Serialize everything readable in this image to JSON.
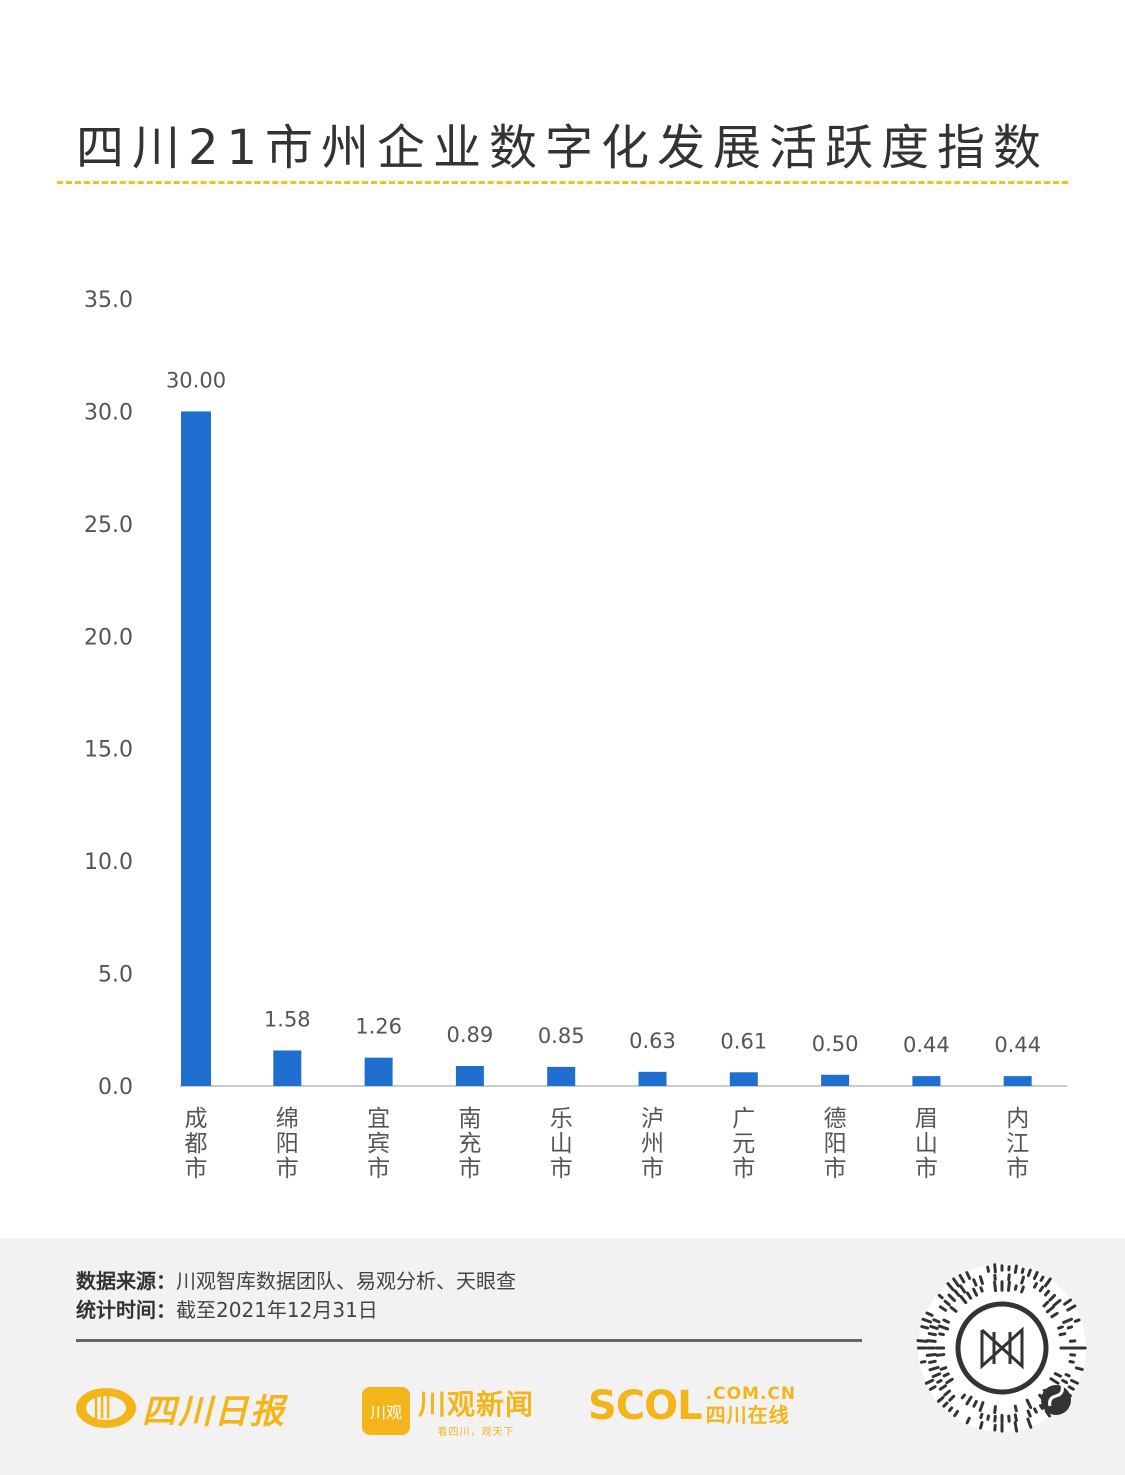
{
  "title": "四川21市州企业数字化发展活跃度指数",
  "chart_data": {
    "type": "bar",
    "categories": [
      "成都市",
      "绵阳市",
      "宜宾市",
      "南充市",
      "乐山市",
      "泸州市",
      "广元市",
      "德阳市",
      "眉山市",
      "内江市"
    ],
    "values": [
      30.0,
      1.58,
      1.26,
      0.89,
      0.85,
      0.63,
      0.61,
      0.5,
      0.44,
      0.44
    ],
    "value_labels": [
      "30.00",
      "1.58",
      "1.26",
      "0.89",
      "0.85",
      "0.63",
      "0.61",
      "0.50",
      "0.44",
      "0.44"
    ],
    "y_ticks": [
      "0.0",
      "5.0",
      "10.0",
      "15.0",
      "20.0",
      "25.0",
      "30.0",
      "35.0"
    ],
    "ylim": [
      0,
      35
    ],
    "grid": false,
    "bar_color": "#1f6fd0"
  },
  "footer": {
    "source_label": "数据来源：",
    "source_text": "川观智库数据团队、易观分析、天眼查",
    "time_label": "统计时间：",
    "time_text": "截至2021年12月31日"
  },
  "logos": {
    "sichuan_daily": "四川日报",
    "chuanguan_badge": "川观",
    "chuanguan_name": "川观新闻",
    "chuanguan_slogan": "看四川，观天下",
    "scol_big": "SCOL",
    "scol_domain": ".COM.CN",
    "scol_cn": "四川在线",
    "brand_color": "#f4b51a"
  }
}
